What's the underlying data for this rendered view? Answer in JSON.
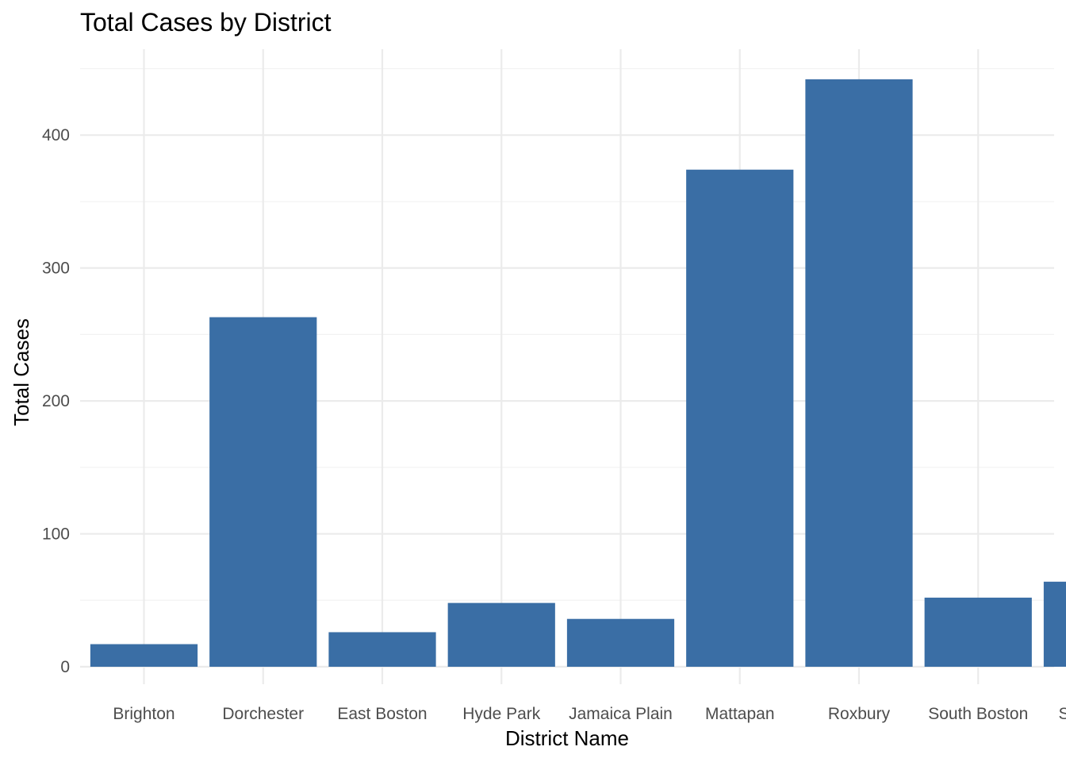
{
  "chart_data": {
    "type": "bar",
    "title": "Total Cases by District",
    "xlabel": "District Name",
    "ylabel": "Total Cases",
    "categories": [
      "Brighton",
      "Dorchester",
      "East Boston",
      "Hyde Park",
      "Jamaica Plain",
      "Mattapan",
      "Roxbury",
      "South Boston",
      "South End"
    ],
    "values": [
      17,
      263,
      26,
      48,
      36,
      374,
      442,
      52,
      64
    ],
    "ylim": [
      0,
      450
    ],
    "yticks": [
      0,
      100,
      200,
      300,
      400
    ],
    "yticks_labels": [
      "0",
      "100",
      "200",
      "300",
      "400"
    ],
    "grid": true,
    "bar_color": "#3A6EA5"
  }
}
